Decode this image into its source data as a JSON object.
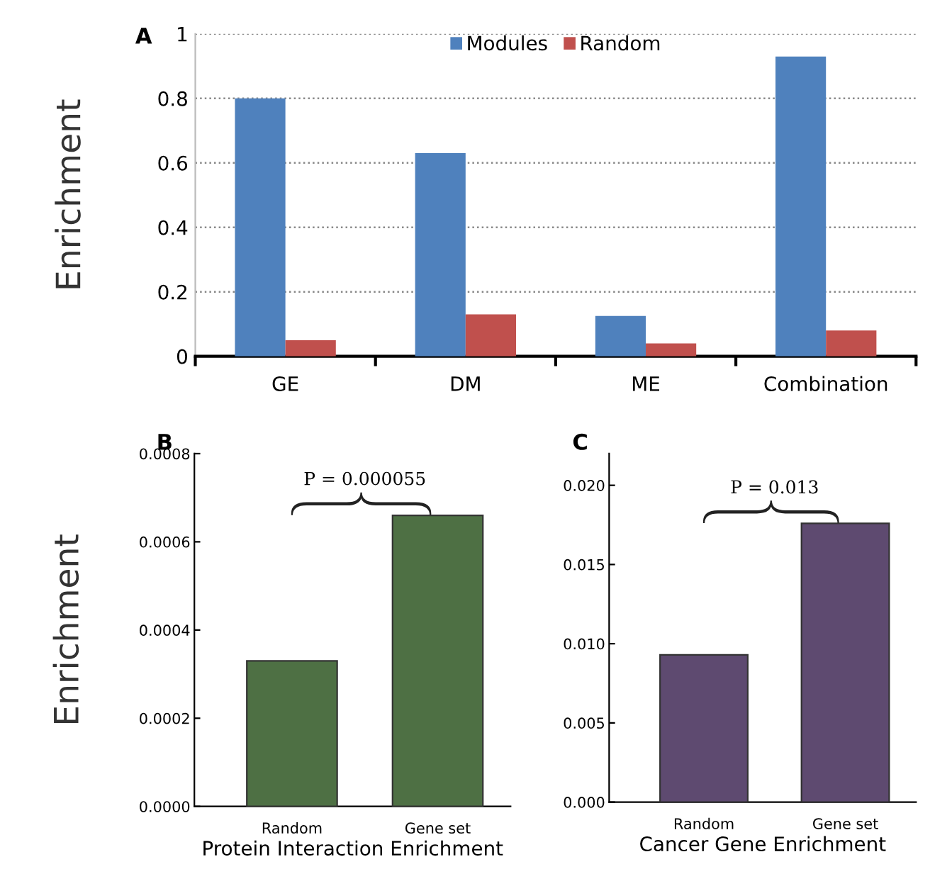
{
  "chart_data": [
    {
      "type": "bar",
      "title": "A",
      "ylabel": "Enrichment",
      "categories": [
        "GE",
        "DM",
        "ME",
        "Combination"
      ],
      "series": [
        {
          "name": "Modules",
          "color": "#4f81bd",
          "values": [
            0.8,
            0.63,
            0.125,
            0.93
          ]
        },
        {
          "name": "Random",
          "color": "#c0504d",
          "values": [
            0.05,
            0.13,
            0.04,
            0.08
          ]
        }
      ],
      "ylim": [
        0,
        1
      ],
      "yticks": [
        0,
        0.2,
        0.4,
        0.6,
        0.8,
        1
      ],
      "grid": "y",
      "legend": "top"
    },
    {
      "type": "bar",
      "title": "B",
      "ylabel": "Enrichment",
      "xlabel": "Protein Interaction Enrichment",
      "categories": [
        "Random",
        "Gene set"
      ],
      "values": [
        0.00033,
        0.00066
      ],
      "color": "#4e7044",
      "ylim": [
        0,
        0.0008
      ],
      "yticks": [
        {
          "value": 0,
          "label": "0.0000"
        },
        {
          "value": 0.0002,
          "label": "0.0002"
        },
        {
          "value": 0.0004,
          "label": "0.0004"
        },
        {
          "value": 0.0006,
          "label": "0.0006"
        },
        {
          "value": 0.0008,
          "label": "0.0008"
        }
      ],
      "annotations": [
        "P = 0.000055"
      ]
    },
    {
      "type": "bar",
      "title": "C",
      "xlabel": "Cancer Gene Enrichment",
      "categories": [
        "Random",
        "Gene set"
      ],
      "values": [
        0.0093,
        0.0176
      ],
      "color": "#5e4a70",
      "ylim": [
        0,
        0.022
      ],
      "yticks": [
        {
          "value": 0,
          "label": "0.000"
        },
        {
          "value": 0.005,
          "label": "0.005"
        },
        {
          "value": 0.01,
          "label": "0.010"
        },
        {
          "value": 0.015,
          "label": "0.015"
        },
        {
          "value": 0.02,
          "label": "0.020"
        }
      ],
      "annotations": [
        "P = 0.013"
      ]
    }
  ]
}
